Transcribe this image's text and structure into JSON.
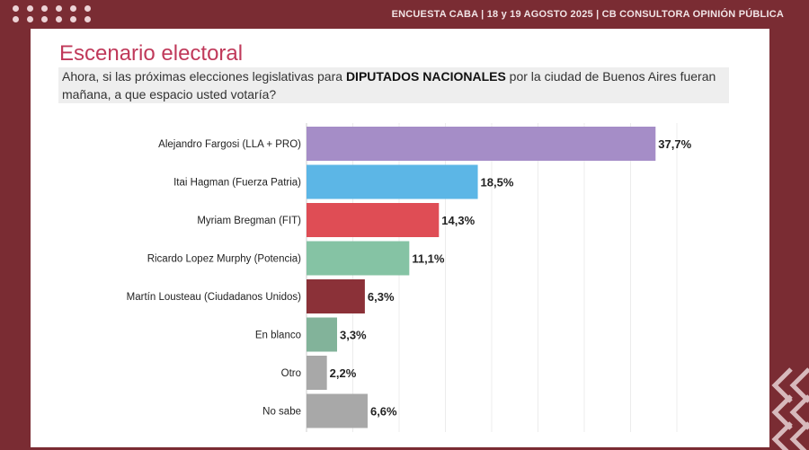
{
  "header": {
    "text": "ENCUESTA CABA  |  18 y 19 AGOSTO 2025 | CB CONSULTORA OPINIÓN PÚBLICA"
  },
  "card": {
    "title": "Escenario electoral",
    "question_pre": "Ahora, si las próximas elecciones legislativas para ",
    "question_bold": "DIPUTADOS NACIONALES",
    "question_post": " por la ciudad de Buenos Aires fueran mañana, a que espacio usted votaría?"
  },
  "chart_data": {
    "type": "bar",
    "orientation": "horizontal",
    "categories": [
      "Alejandro Fargosi (LLA + PRO)",
      "Itai Hagman (Fuerza Patria)",
      "Myriam Bregman (FIT)",
      "Ricardo Lopez Murphy (Potencia)",
      "Martín Lousteau (Ciudadanos Unidos)",
      "En blanco",
      "Otro",
      "No sabe"
    ],
    "values": [
      37.7,
      18.5,
      14.3,
      11.1,
      6.3,
      3.3,
      2.2,
      6.6
    ],
    "value_labels": [
      "37,7%",
      "18,5%",
      "14,3%",
      "11,1%",
      "6,3%",
      "3,3%",
      "2,2%",
      "6,6%"
    ],
    "colors": [
      "#a58dc7",
      "#5cb6e6",
      "#df4d55",
      "#85c3a4",
      "#8b3138",
      "#82b39a",
      "#a8a8a8",
      "#a8a8a8"
    ],
    "xlim": [
      0,
      40
    ],
    "grid": true,
    "legend": "none"
  }
}
